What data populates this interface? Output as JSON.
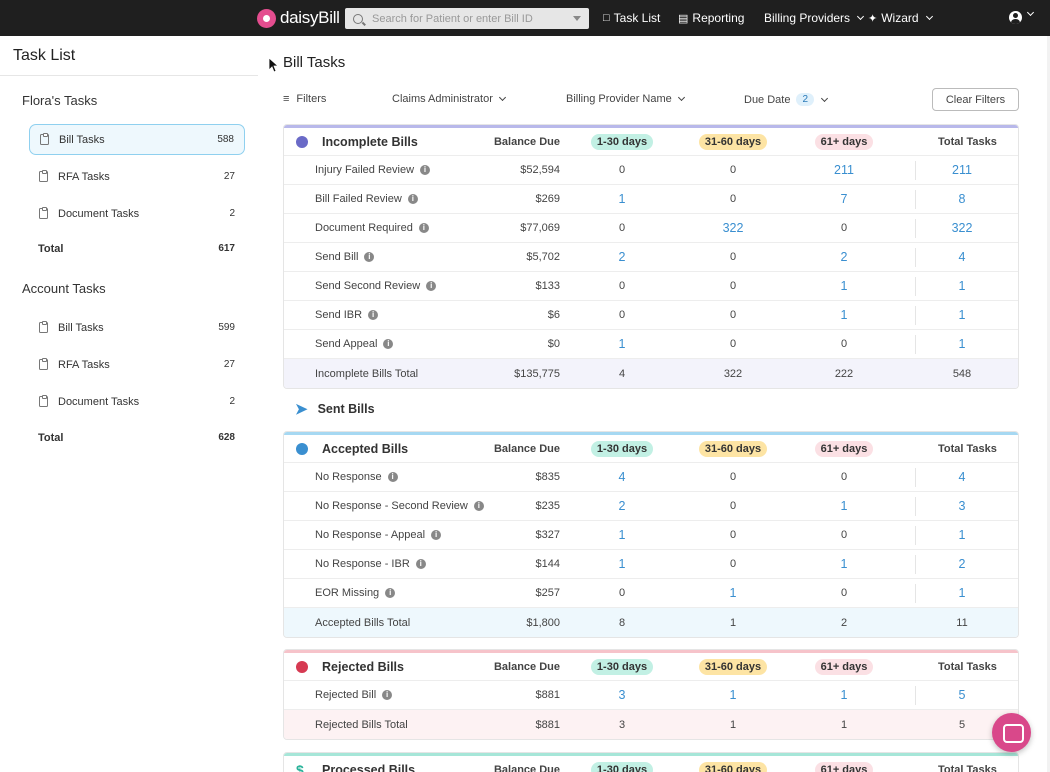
{
  "topbar": {
    "logo_text": "daisyBill",
    "search_placeholder": "Search for Patient or enter Bill ID",
    "nav": {
      "task_list": "Task List",
      "reporting": "Reporting",
      "billing_providers": "Billing Providers",
      "wizard": "Wizard"
    }
  },
  "sidebar": {
    "title": "Task List",
    "groups": [
      {
        "label": "Flora's Tasks",
        "items": [
          {
            "label": "Bill Tasks",
            "count": "588"
          },
          {
            "label": "RFA Tasks",
            "count": "27"
          },
          {
            "label": "Document Tasks",
            "count": "2"
          }
        ],
        "total_label": "Total",
        "total": "617"
      },
      {
        "label": "Account Tasks",
        "items": [
          {
            "label": "Bill Tasks",
            "count": "599"
          },
          {
            "label": "RFA Tasks",
            "count": "27"
          },
          {
            "label": "Document Tasks",
            "count": "2"
          }
        ],
        "total_label": "Total",
        "total": "628"
      }
    ]
  },
  "main": {
    "title": "Bill Tasks",
    "filters": {
      "filters_label": "Filters",
      "claims_admin": "Claims Administrator",
      "billing_provider": "Billing Provider Name",
      "due_date": "Due Date",
      "due_date_count": "2",
      "clear": "Clear Filters"
    },
    "columns": {
      "balance": "Balance Due",
      "d1": "1-30 days",
      "d2": "31-60 days",
      "d3": "61+ days",
      "total": "Total Tasks"
    },
    "incomplete": {
      "title": "Incomplete Bills",
      "color": "#b8b8ea",
      "rows": [
        {
          "name": "Injury Failed Review",
          "balance": "$52,594",
          "d1": "0",
          "d2": "0",
          "d3": "211",
          "total": "211"
        },
        {
          "name": "Bill Failed Review",
          "balance": "$269",
          "d1": "1",
          "d2": "0",
          "d3": "7",
          "total": "8"
        },
        {
          "name": "Document Required",
          "balance": "$77,069",
          "d1": "0",
          "d2": "322",
          "d3": "0",
          "total": "322"
        },
        {
          "name": "Send Bill",
          "balance": "$5,702",
          "d1": "2",
          "d2": "0",
          "d3": "2",
          "total": "4"
        },
        {
          "name": "Send Second Review",
          "balance": "$133",
          "d1": "0",
          "d2": "0",
          "d3": "1",
          "total": "1"
        },
        {
          "name": "Send IBR",
          "balance": "$6",
          "d1": "0",
          "d2": "0",
          "d3": "1",
          "total": "1"
        },
        {
          "name": "Send Appeal",
          "balance": "$0",
          "d1": "1",
          "d2": "0",
          "d3": "0",
          "total": "1"
        }
      ],
      "total_row": {
        "name": "Incomplete Bills Total",
        "balance": "$135,775",
        "d1": "4",
        "d2": "322",
        "d3": "222",
        "total": "548"
      }
    },
    "sent": {
      "title": "Sent Bills"
    },
    "accepted": {
      "title": "Accepted Bills",
      "color": "#a6d8f2",
      "rows": [
        {
          "name": "No Response",
          "balance": "$835",
          "d1": "4",
          "d2": "0",
          "d3": "0",
          "total": "4"
        },
        {
          "name": "No Response - Second Review",
          "balance": "$235",
          "d1": "2",
          "d2": "0",
          "d3": "1",
          "total": "3"
        },
        {
          "name": "No Response - Appeal",
          "balance": "$327",
          "d1": "1",
          "d2": "0",
          "d3": "0",
          "total": "1"
        },
        {
          "name": "No Response - IBR",
          "balance": "$144",
          "d1": "1",
          "d2": "0",
          "d3": "1",
          "total": "2"
        },
        {
          "name": "EOR Missing",
          "balance": "$257",
          "d1": "0",
          "d2": "1",
          "d3": "0",
          "total": "1"
        }
      ],
      "total_row": {
        "name": "Accepted Bills Total",
        "balance": "$1,800",
        "d1": "8",
        "d2": "1",
        "d3": "2",
        "total": "11"
      }
    },
    "rejected": {
      "title": "Rejected Bills",
      "color": "#f6c3ca",
      "rows": [
        {
          "name": "Rejected Bill",
          "balance": "$881",
          "d1": "3",
          "d2": "1",
          "d3": "1",
          "total": "5"
        }
      ],
      "total_row": {
        "name": "Rejected Bills Total",
        "balance": "$881",
        "d1": "3",
        "d2": "1",
        "d3": "1",
        "total": "5"
      }
    },
    "processed": {
      "title": "Processed Bills",
      "color": "#a6e6d8"
    }
  }
}
